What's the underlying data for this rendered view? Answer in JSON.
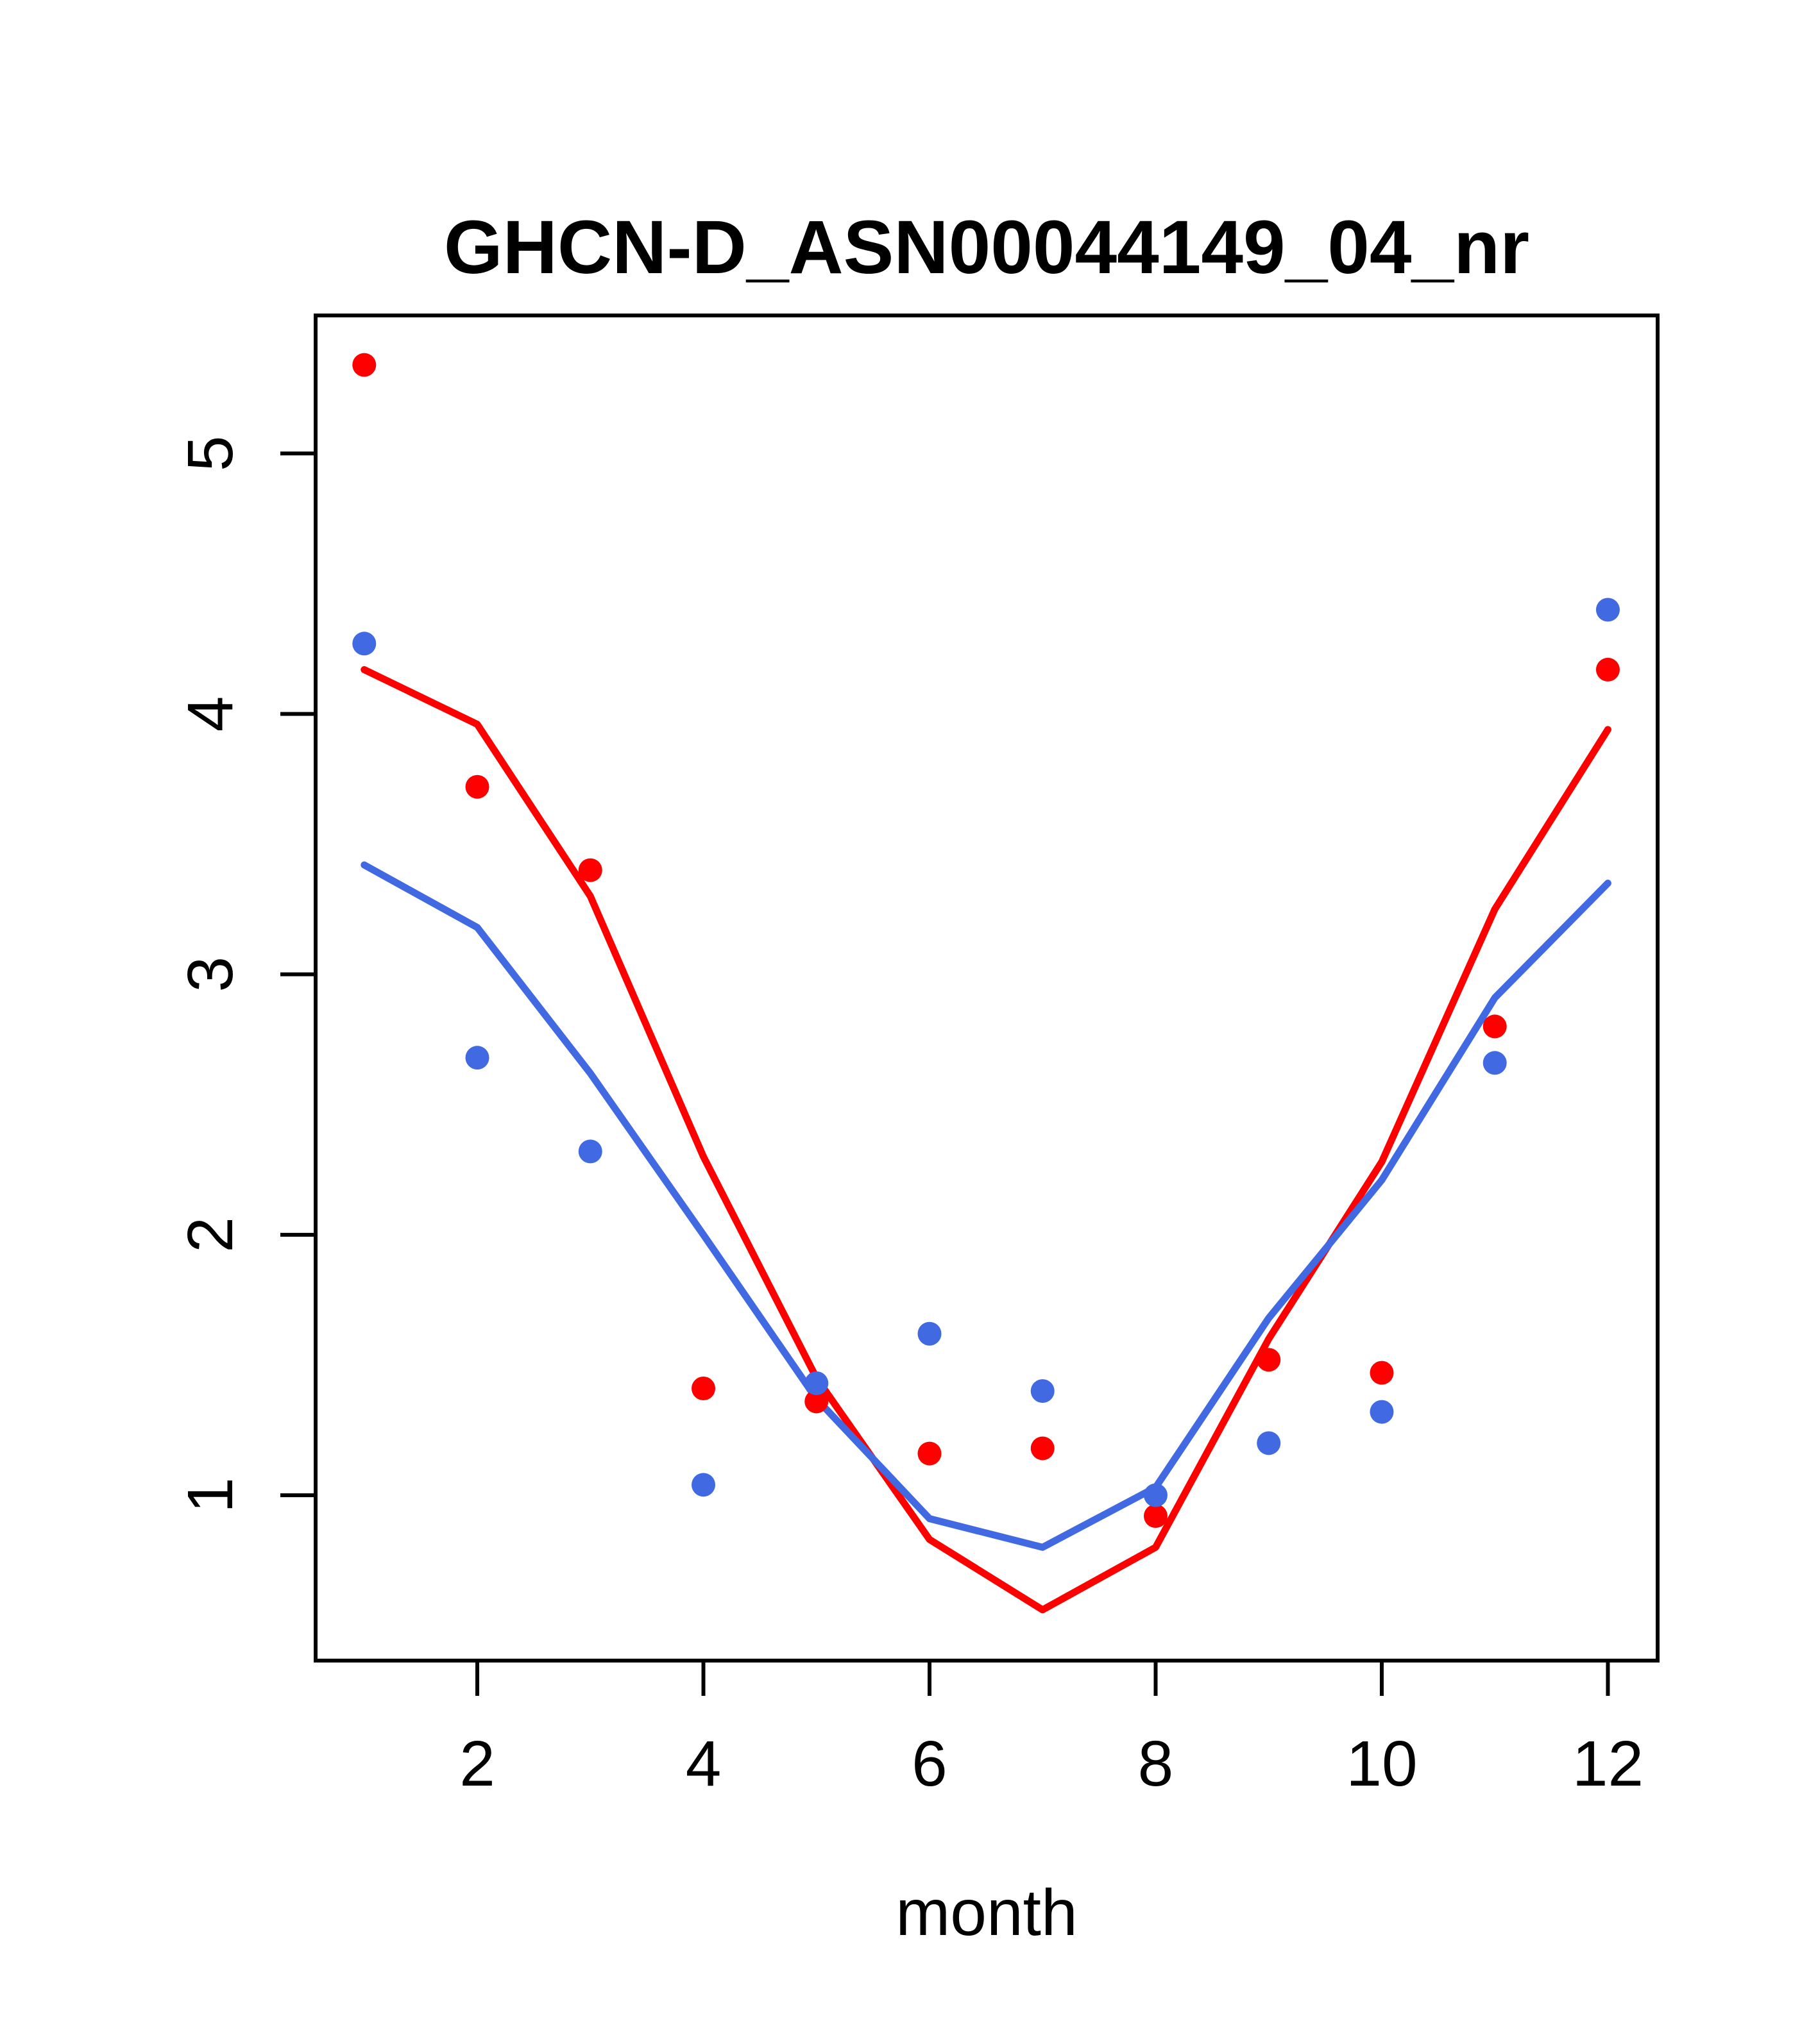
{
  "figure": {
    "background_color": "#ffffff",
    "axis_color": "#000000"
  },
  "chart_data": {
    "type": "scatter",
    "title": "GHCN-D_ASN00044149_04_nr",
    "xlabel": "month",
    "ylabel": "",
    "x": [
      1,
      2,
      3,
      4,
      5,
      6,
      7,
      8,
      9,
      10,
      11,
      12
    ],
    "x_tick_labels": [
      2,
      4,
      6,
      8,
      10,
      12
    ],
    "y_tick_labels": [
      1,
      2,
      3,
      4,
      5
    ],
    "xlim": [
      0.57,
      12.44
    ],
    "ylim": [
      0.365,
      5.53
    ],
    "grid": false,
    "legend_position": "none",
    "series": [
      {
        "name": "red-points",
        "render": "points",
        "color": "#ff0000",
        "values": [
          5.34,
          3.72,
          3.4,
          1.41,
          1.36,
          1.16,
          1.18,
          0.92,
          1.52,
          1.47,
          2.8,
          4.17
        ]
      },
      {
        "name": "blue-points",
        "render": "points",
        "color": "#4169e1",
        "values": [
          4.27,
          2.68,
          2.32,
          1.04,
          1.43,
          1.62,
          1.4,
          1.0,
          1.2,
          1.32,
          2.66,
          4.4
        ]
      },
      {
        "name": "red-smooth-line",
        "render": "line",
        "color": "#ff0000",
        "values": [
          4.17,
          3.96,
          3.3,
          2.3,
          1.45,
          0.83,
          0.56,
          0.8,
          1.6,
          2.28,
          3.25,
          3.94
        ]
      },
      {
        "name": "blue-smooth-line",
        "render": "line",
        "color": "#4169e1",
        "values": [
          3.42,
          3.18,
          2.62,
          2.0,
          1.37,
          0.91,
          0.8,
          1.03,
          1.68,
          2.21,
          2.91,
          3.35
        ]
      }
    ]
  }
}
